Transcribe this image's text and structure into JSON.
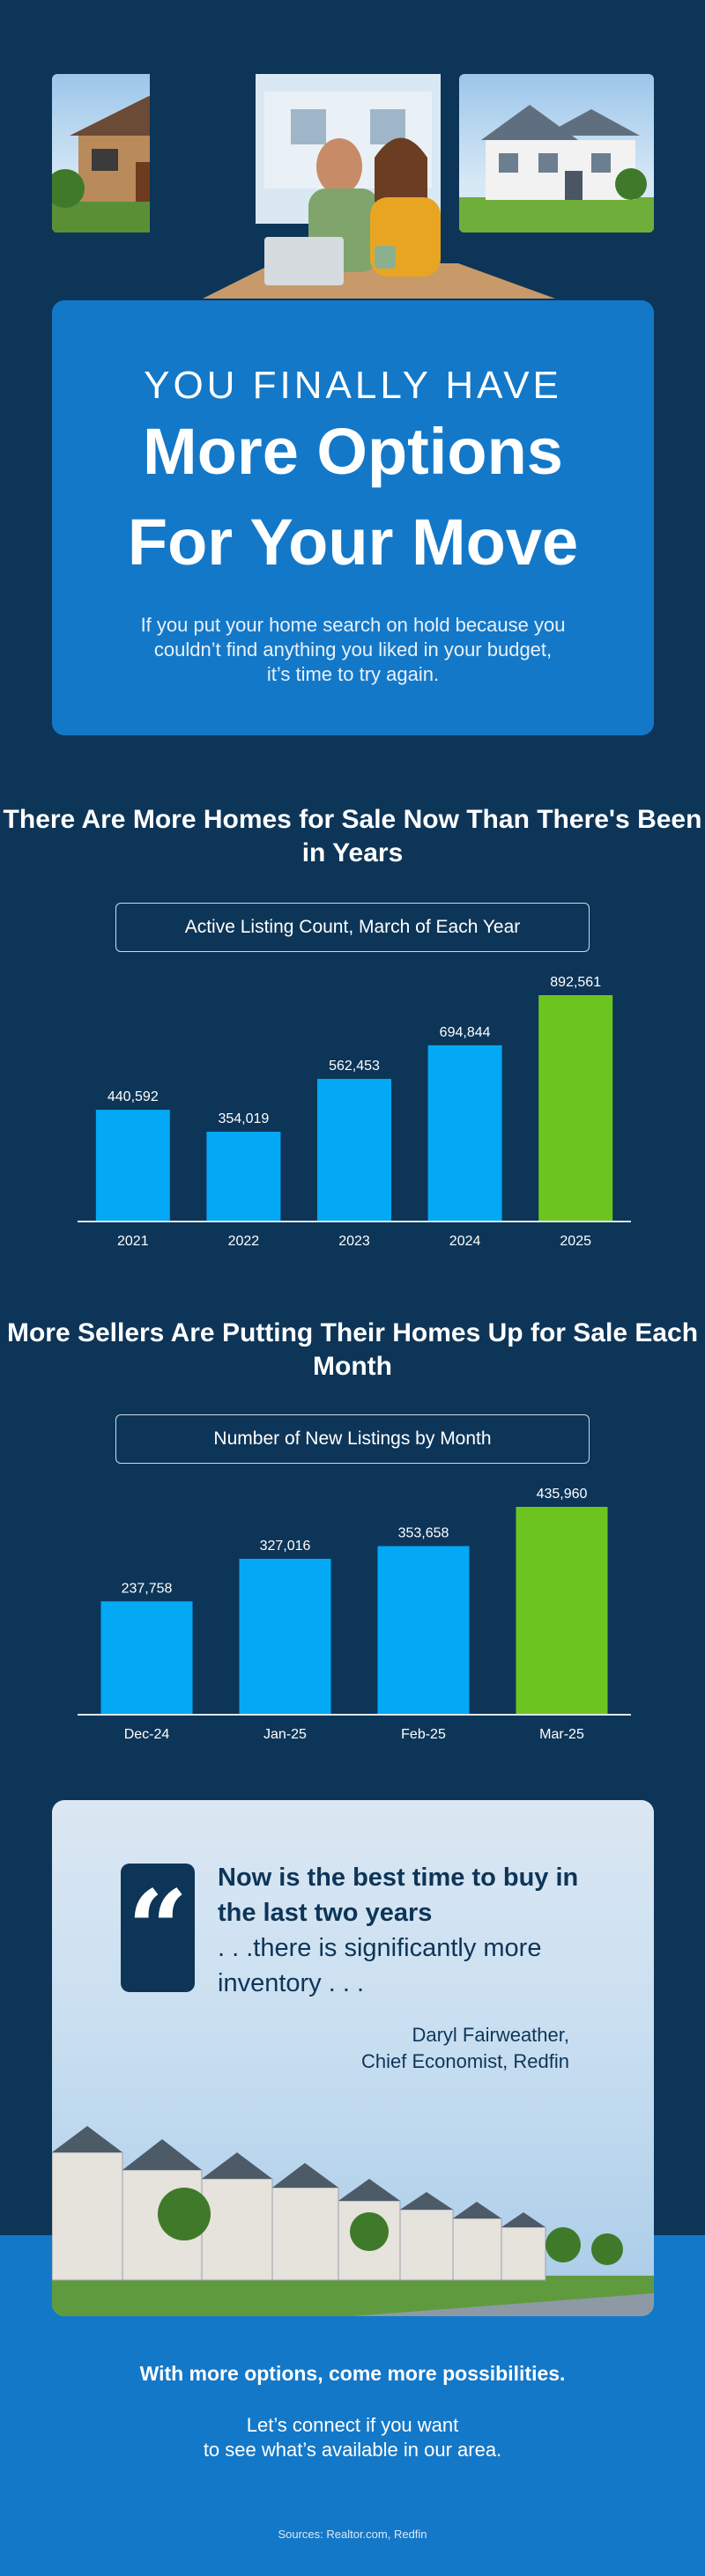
{
  "hero": {
    "kicker": "YOU FINALLY HAVE",
    "headline_line1": "More Options",
    "headline_line2": "For Your Move",
    "intro": "If you put your home search on hold because you couldn’t find anything you liked in your budget, it’s time to try again."
  },
  "chart_data": [
    {
      "type": "bar",
      "title": "There Are More Homes for Sale Now Than There's Been in Years",
      "subtitle": "Active Listing Count, March of Each Year",
      "categories": [
        "2021",
        "2022",
        "2023",
        "2024",
        "2025"
      ],
      "values": [
        440592,
        354019,
        562453,
        694844,
        892561
      ],
      "value_labels": [
        "440,592",
        "354,019",
        "562,453",
        "694,844",
        "892,561"
      ],
      "highlight_index": 4,
      "ylim": [
        0,
        892561
      ],
      "grid": false,
      "xlabel": "",
      "ylabel": ""
    },
    {
      "type": "bar",
      "title": "More Sellers Are Putting Their Homes Up for Sale Each Month",
      "subtitle": "Number of New Listings by Month",
      "categories": [
        "Dec-24",
        "Jan-25",
        "Feb-25",
        "Mar-25"
      ],
      "values": [
        237758,
        327016,
        353658,
        435960
      ],
      "value_labels": [
        "237,758",
        "327,016",
        "353,658",
        "435,960"
      ],
      "highlight_index": 3,
      "ylim": [
        0,
        435960
      ],
      "grid": false,
      "xlabel": "",
      "ylabel": ""
    }
  ],
  "quote": {
    "mark": "“",
    "bold_text": "Now is the best time to buy in the last two years",
    "rest_text": ". . .there is significantly more inventory . . .",
    "author": "Daryl Fairweather,",
    "author_title": "Chief Economist, Redfin"
  },
  "footer": {
    "cta_bold": "With more options, come more possibilities.",
    "cta_line1": "Let’s connect if you want",
    "cta_line2": "to see what’s available in our area.",
    "sources": "Sources: Realtor.com, Redfin"
  },
  "colors": {
    "background": "#0d3558",
    "accent_blue": "#1478c8",
    "bar_blue": "#03a9f4",
    "bar_highlight": "#6cc51e"
  },
  "icons": [
    "quote-icon"
  ]
}
